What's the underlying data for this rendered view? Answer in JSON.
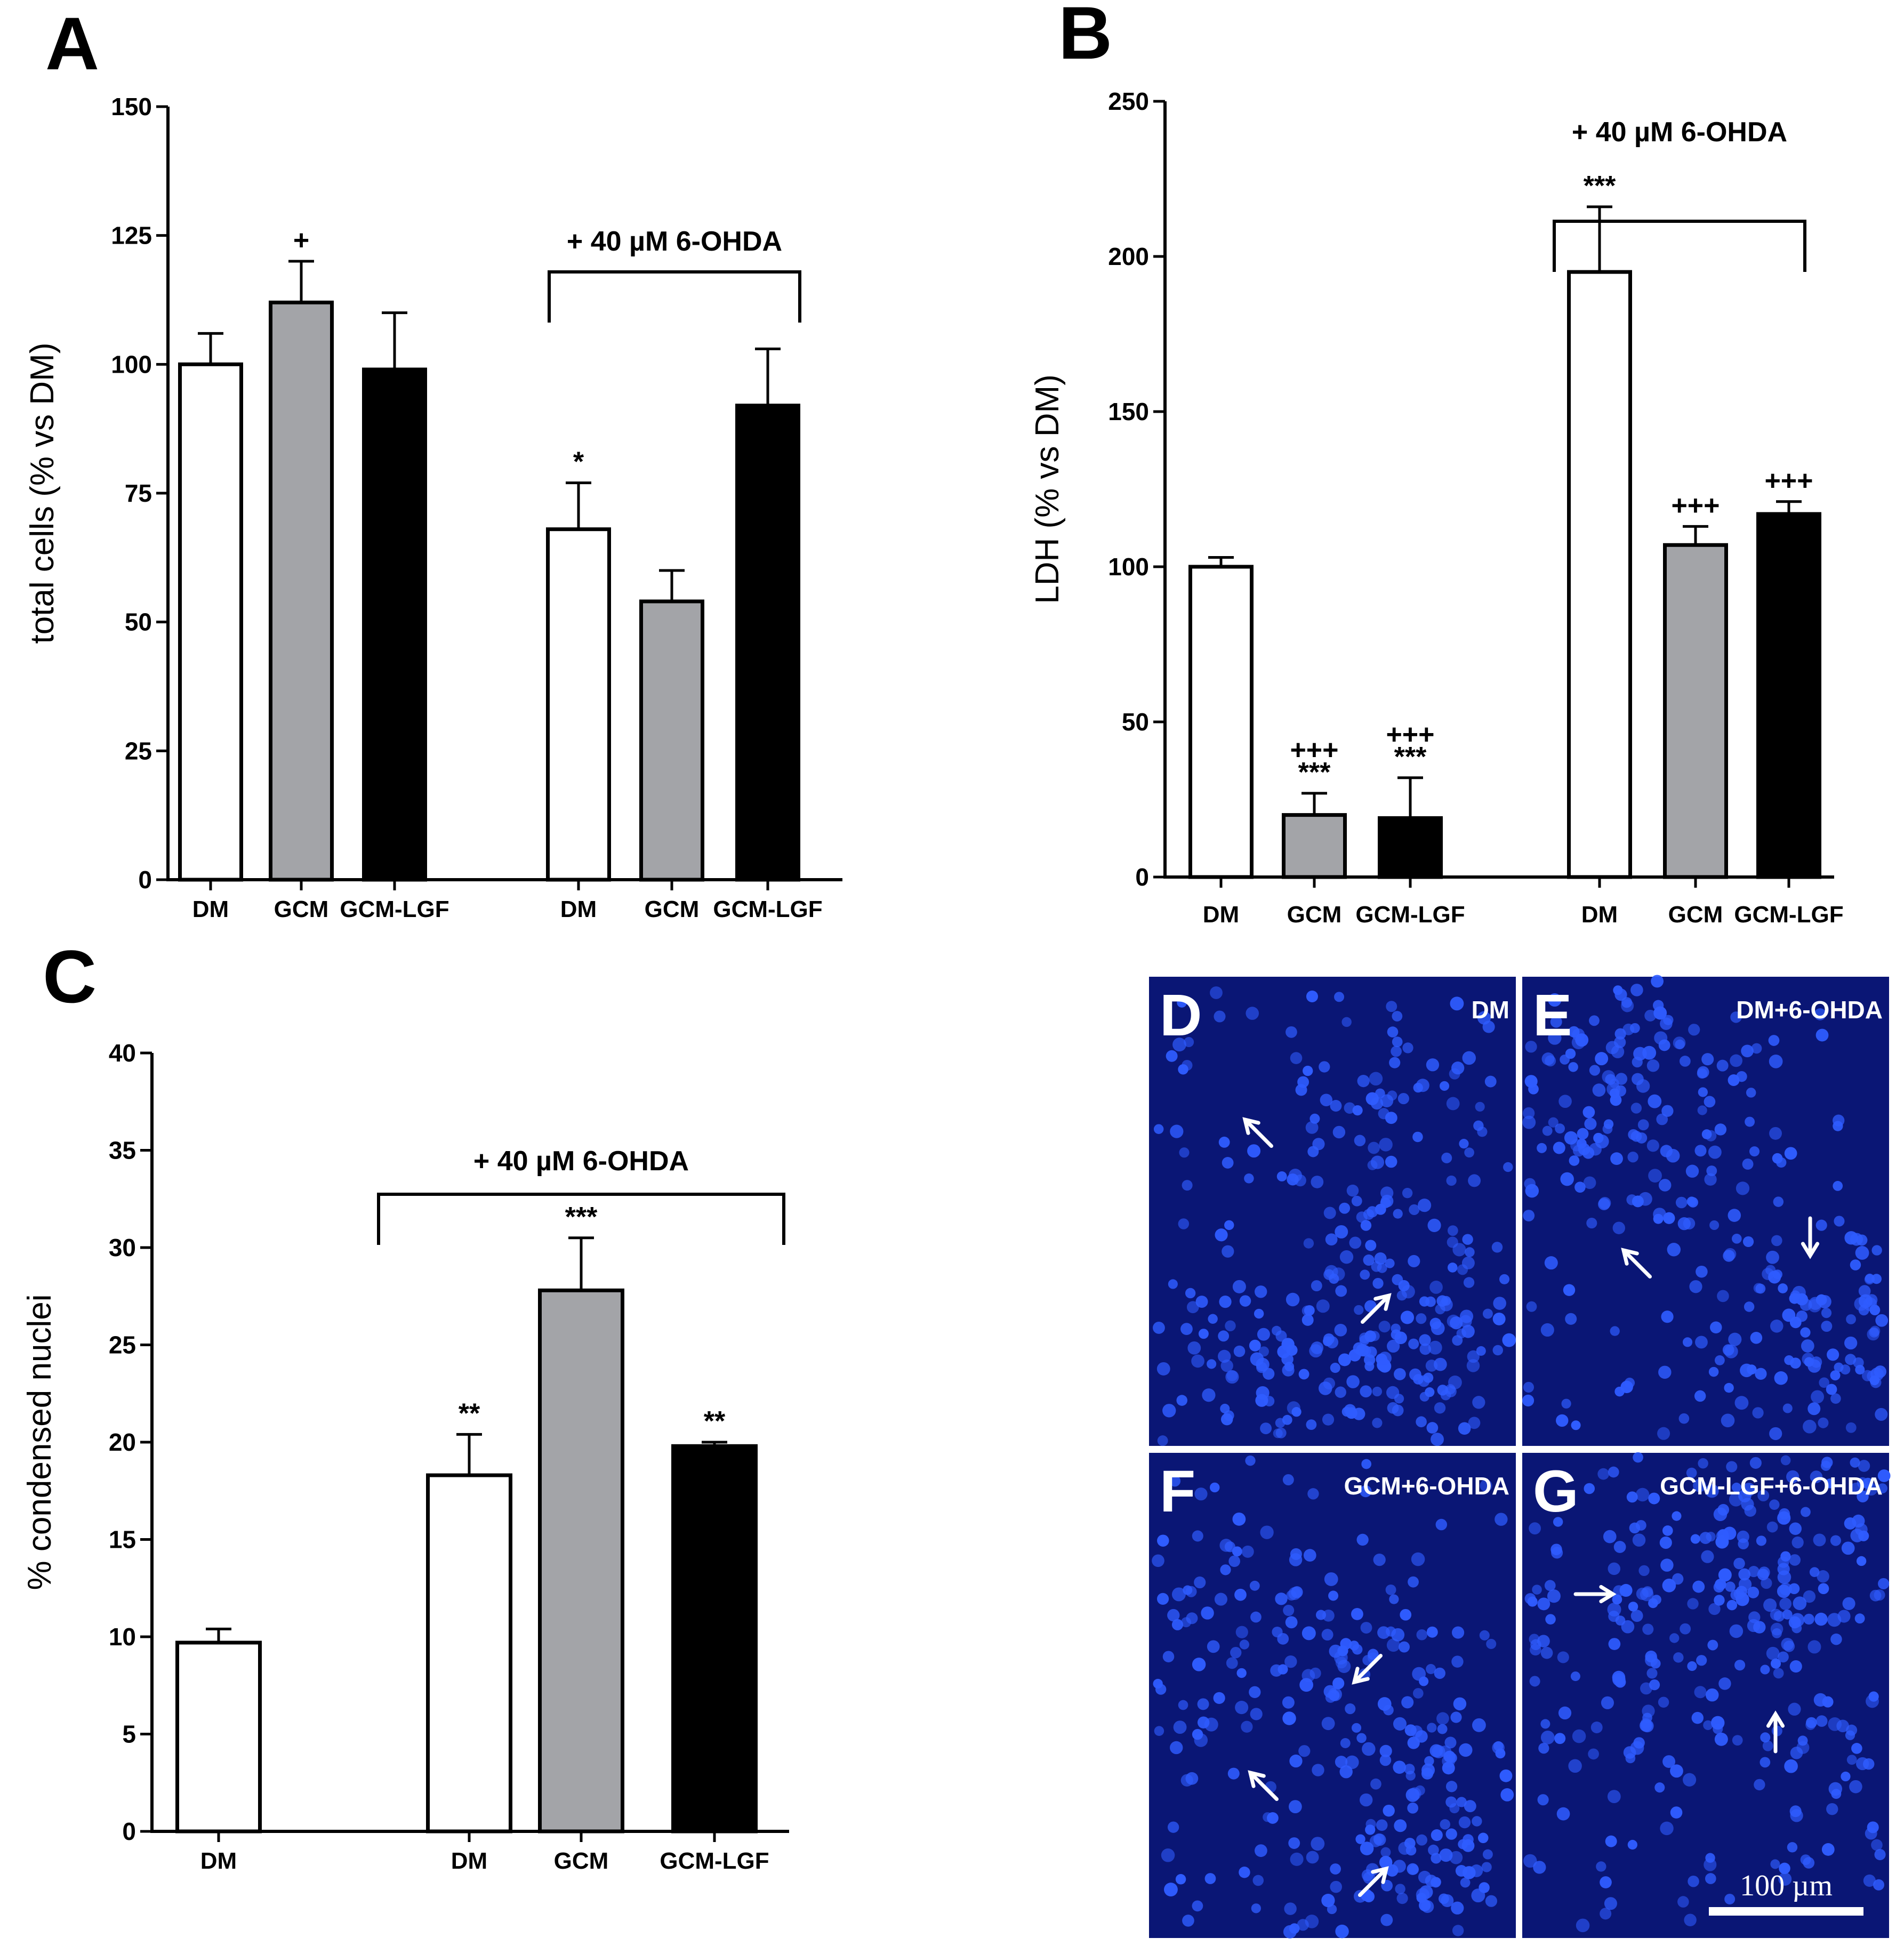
{
  "colors": {
    "DM": "#ffffff",
    "GCM": "#a3a4a8",
    "GCM-LGF": "#000000",
    "micro_bg": "#0a1675",
    "nuclei": "#2f5cff"
  },
  "chart_data": [
    {
      "panel": "A",
      "type": "bar",
      "ylabel": "total cells (% vs DM)",
      "ylim": [
        0,
        150
      ],
      "yticks": [
        0,
        25,
        50,
        75,
        100,
        125,
        150
      ],
      "bracket_label": "+ 40 µM 6-OHDA",
      "groups": [
        {
          "bars": [
            {
              "category": "DM",
              "fill": "DM",
              "value": 100,
              "error": 6,
              "sig": []
            },
            {
              "category": "GCM",
              "fill": "GCM",
              "value": 112,
              "error": 8,
              "sig": [
                "+"
              ]
            },
            {
              "category": "GCM-LGF",
              "fill": "GCM-LGF",
              "value": 99,
              "error": 11,
              "sig": []
            }
          ]
        },
        {
          "bars": [
            {
              "category": "DM",
              "fill": "DM",
              "value": 68,
              "error": 9,
              "sig": [
                "*"
              ]
            },
            {
              "category": "GCM",
              "fill": "GCM",
              "value": 54,
              "error": 6,
              "sig": []
            },
            {
              "category": "GCM-LGF",
              "fill": "GCM-LGF",
              "value": 92,
              "error": 11,
              "sig": []
            }
          ]
        }
      ]
    },
    {
      "panel": "B",
      "type": "bar",
      "ylabel": "LDH (% vs DM)",
      "ylim": [
        0,
        250
      ],
      "yticks": [
        0,
        50,
        100,
        150,
        200,
        250
      ],
      "bracket_label": "+ 40 µM 6-OHDA",
      "groups": [
        {
          "bars": [
            {
              "category": "DM",
              "fill": "DM",
              "value": 100,
              "error": 3,
              "sig": []
            },
            {
              "category": "GCM",
              "fill": "GCM",
              "value": 20,
              "error": 7,
              "sig": [
                "***",
                "+++"
              ]
            },
            {
              "category": "GCM-LGF",
              "fill": "GCM-LGF",
              "value": 19,
              "error": 13,
              "sig": [
                "***",
                "+++"
              ]
            }
          ]
        },
        {
          "bars": [
            {
              "category": "DM",
              "fill": "DM",
              "value": 195,
              "error": 21,
              "sig": [
                "***"
              ]
            },
            {
              "category": "GCM",
              "fill": "GCM",
              "value": 107,
              "error": 6,
              "sig": [
                "+++"
              ]
            },
            {
              "category": "GCM-LGF",
              "fill": "GCM-LGF",
              "value": 117,
              "error": 4,
              "sig": [
                "+++"
              ]
            }
          ]
        }
      ]
    },
    {
      "panel": "C",
      "type": "bar",
      "ylabel": "% condensed nuclei",
      "ylim": [
        0,
        40
      ],
      "yticks": [
        0,
        5,
        10,
        15,
        20,
        25,
        30,
        35,
        40
      ],
      "bracket_label": "+ 40 µM 6-OHDA",
      "groups": [
        {
          "bars": [
            {
              "category": "DM",
              "fill": "DM",
              "value": 9.7,
              "error": 0.7,
              "sig": []
            }
          ]
        },
        {
          "bars": [
            {
              "category": "DM",
              "fill": "DM",
              "value": 18.3,
              "error": 2.1,
              "sig": [
                "**"
              ]
            },
            {
              "category": "GCM",
              "fill": "GCM",
              "value": 27.8,
              "error": 2.7,
              "sig": [
                "***"
              ]
            },
            {
              "category": "GCM-LGF",
              "fill": "GCM-LGF",
              "value": 19.8,
              "error": 0.2,
              "sig": [
                "**"
              ]
            }
          ]
        }
      ]
    }
  ],
  "micrographs": [
    {
      "letter": "D",
      "tag": "DM"
    },
    {
      "letter": "E",
      "tag": "DM+6-OHDA"
    },
    {
      "letter": "F",
      "tag": "GCM+6-OHDA"
    },
    {
      "letter": "G",
      "tag": "GCM-LGF+6-OHDA",
      "scale_bar": "100 µm"
    }
  ]
}
